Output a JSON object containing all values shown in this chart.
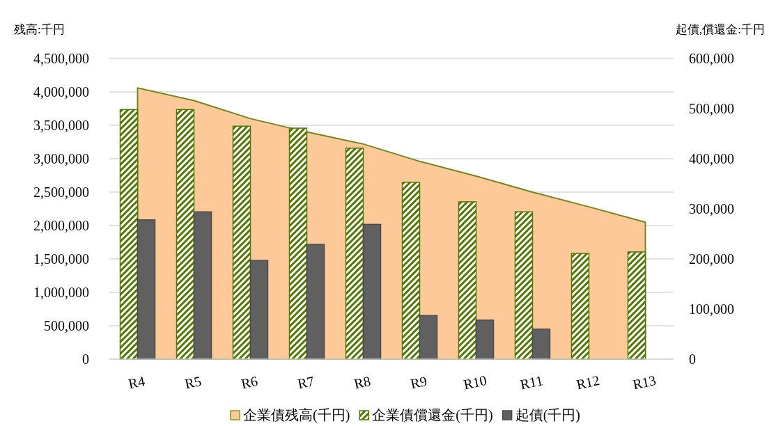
{
  "chart_data": {
    "type": "bar",
    "ylabel": "残高:千円",
    "y2label": "起債,償還金:千円",
    "categories": [
      "R4",
      "R5",
      "R6",
      "R7",
      "R8",
      "R9",
      "R10",
      "R11",
      "R12",
      "R13"
    ],
    "series": [
      {
        "name": "企業債残高(千円)",
        "type": "area",
        "color": "#fdc998",
        "values": [
          4060000,
          3870000,
          3600000,
          3400000,
          3220000,
          2960000,
          2740000,
          2500000,
          2280000,
          2050000
        ]
      },
      {
        "name": "企業債償還金(千円)",
        "axis": "y2",
        "color": "#4f7a00",
        "values": [
          498000,
          498000,
          465000,
          461000,
          421000,
          353000,
          314000,
          294000,
          211000,
          214000
        ]
      },
      {
        "name": "起債(千円)",
        "axis": "y2",
        "color": "#606060",
        "values": [
          278000,
          294000,
          197000,
          229000,
          269000,
          87000,
          78000,
          60000,
          null,
          null
        ]
      }
    ],
    "ylim": [
      0,
      4500000
    ],
    "yticks": [
      0,
      {
        "value": 500000,
        "label": "500,000"
      },
      {
        "value": 1000000,
        "label": "1,000,000"
      },
      {
        "value": 1500000,
        "label": "1,500,000"
      },
      {
        "value": 2000000,
        "label": "2,000,000"
      },
      {
        "value": 2500000,
        "label": "2,500,000"
      },
      {
        "value": 3000000,
        "label": "3,000,000"
      },
      {
        "value": 3500000,
        "label": "3,500,000"
      },
      {
        "value": 4000000,
        "label": "4,000,000"
      },
      {
        "value": 4500000,
        "label": "4,500,000"
      }
    ],
    "y2lim": [
      0,
      600000
    ],
    "y2ticks": [
      0,
      {
        "value": 100000,
        "label": "100,000"
      },
      {
        "value": 200000,
        "label": "200,000"
      },
      {
        "value": 300000,
        "label": "300,000"
      },
      {
        "value": 400000,
        "label": "400,000"
      },
      {
        "value": 500000,
        "label": "500,000"
      },
      {
        "value": 600000,
        "label": "600,000"
      }
    ],
    "grid": "y",
    "legend": "bottom"
  }
}
